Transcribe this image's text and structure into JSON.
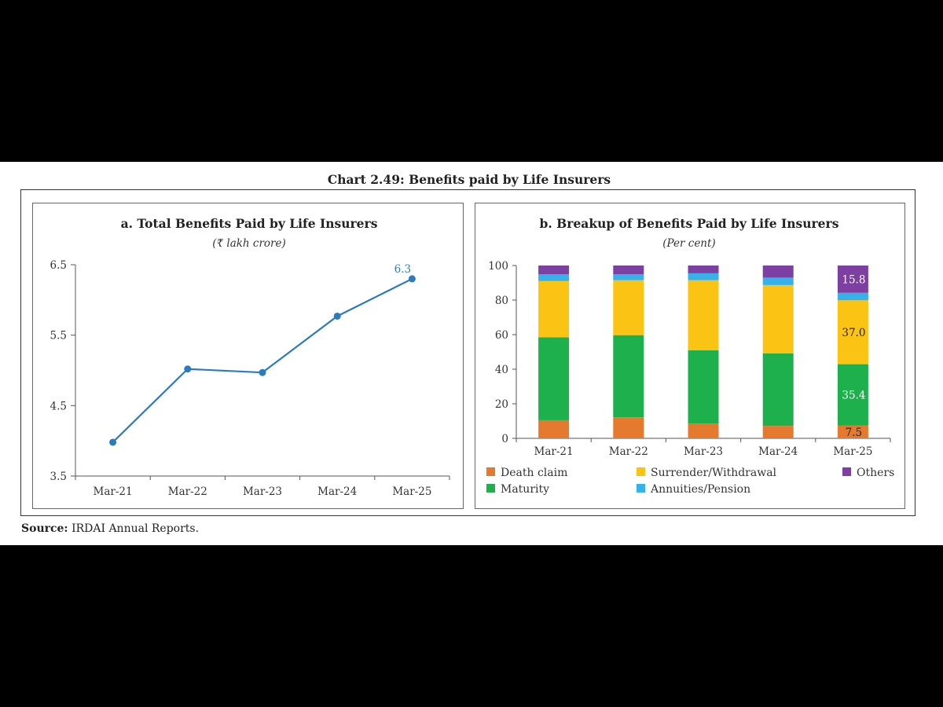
{
  "figure_title": "Chart 2.49: Benefits paid by Life Insurers",
  "source_label": "Source:",
  "source_text": "IRDAI Annual Reports.",
  "colors": {
    "line": "#2a7bc0",
    "death_claim": "#e57a2f",
    "maturity": "#1db04c",
    "surrender": "#fbc313",
    "annuities": "#36b1ea",
    "others": "#7e3fa3"
  },
  "chart_data": [
    {
      "type": "line",
      "title": "a. Total Benefits Paid by Life Insurers",
      "subtitle": "(₹ lakh crore)",
      "categories": [
        "Mar-21",
        "Mar-22",
        "Mar-23",
        "Mar-24",
        "Mar-25"
      ],
      "values": [
        3.98,
        5.02,
        4.97,
        5.77,
        6.3
      ],
      "data_labels": [
        null,
        null,
        null,
        null,
        "6.3"
      ],
      "ylim": [
        3.5,
        6.5
      ],
      "yticks": [
        "3.5",
        "4.5",
        "5.5",
        "6.5"
      ],
      "grid": false,
      "legend": "none"
    },
    {
      "type": "bar",
      "stacked": true,
      "title": "b. Breakup of Benefits Paid by Life Insurers",
      "subtitle": "(Per cent)",
      "categories": [
        "Mar-21",
        "Mar-22",
        "Mar-23",
        "Mar-24",
        "Mar-25"
      ],
      "ylim": [
        0,
        100
      ],
      "yticks": [
        "0",
        "20",
        "40",
        "60",
        "80",
        "100"
      ],
      "grid": false,
      "legend": "bottom",
      "series": [
        {
          "name": "Death claim",
          "color_key": "death_claim",
          "values": [
            10.5,
            12.2,
            8.5,
            7.2,
            7.5
          ],
          "labels": [
            null,
            null,
            null,
            null,
            "7.5"
          ]
        },
        {
          "name": "Maturity",
          "color_key": "maturity",
          "values": [
            48.0,
            47.5,
            42.5,
            42.0,
            35.4
          ],
          "labels": [
            null,
            null,
            null,
            null,
            "35.4"
          ]
        },
        {
          "name": "Surrender/Withdrawal",
          "color_key": "surrender",
          "values": [
            32.5,
            31.8,
            40.5,
            39.5,
            37.0
          ],
          "labels": [
            null,
            null,
            null,
            null,
            "37.0"
          ]
        },
        {
          "name": "Annuities/Pension",
          "color_key": "annuities",
          "values": [
            4.0,
            3.5,
            4.0,
            4.3,
            4.3
          ],
          "labels": [
            null,
            null,
            null,
            null,
            null
          ]
        },
        {
          "name": "Others",
          "color_key": "others",
          "values": [
            5.0,
            5.0,
            4.5,
            7.0,
            15.8
          ],
          "labels": [
            null,
            null,
            null,
            null,
            "15.8"
          ]
        }
      ],
      "legend_order": [
        "Death claim",
        "Surrender/Withdrawal",
        "Others",
        "Maturity",
        "Annuities/Pension"
      ]
    }
  ]
}
